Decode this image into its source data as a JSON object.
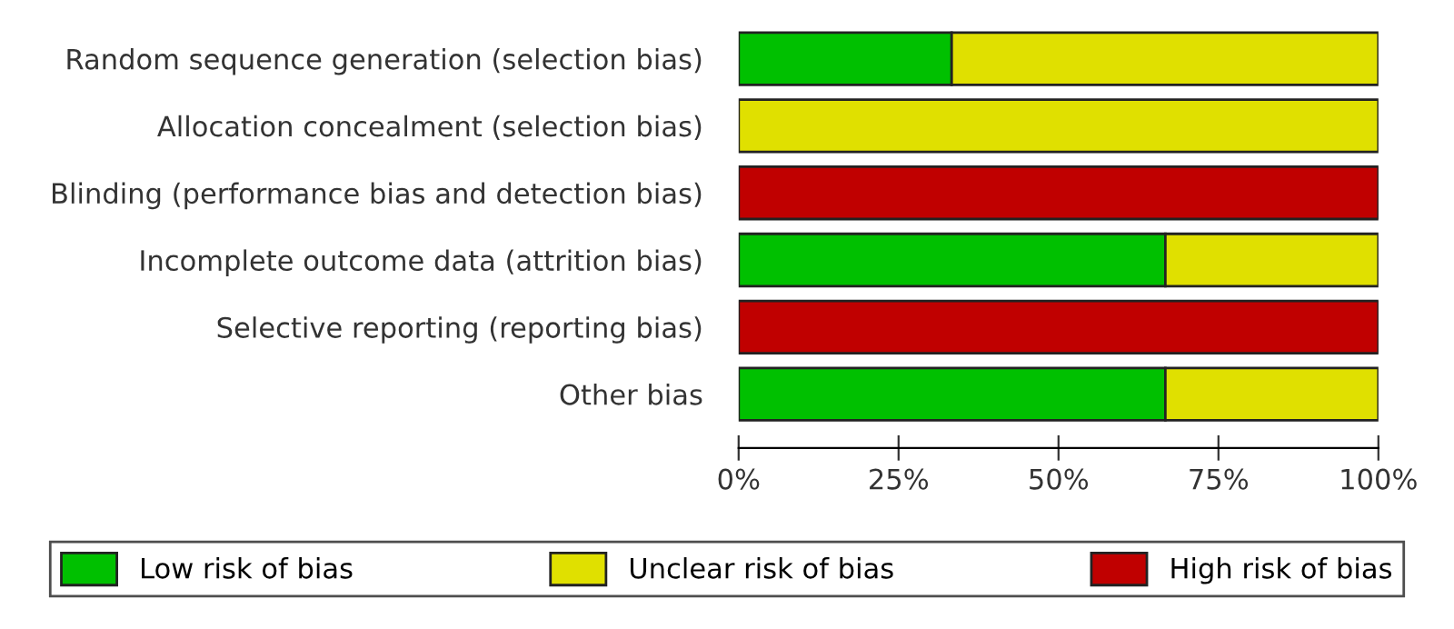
{
  "chart_data": {
    "type": "bar",
    "orientation": "horizontal",
    "stacked": true,
    "categories": [
      "Random sequence generation (selection bias)",
      "Allocation concealment (selection bias)",
      "Blinding (performance bias and detection bias)",
      "Incomplete outcome data (attrition bias)",
      "Selective reporting (reporting bias)",
      "Other bias"
    ],
    "series": [
      {
        "name": "Low risk of bias",
        "color": "#00c000",
        "values": [
          33.3,
          0,
          0,
          66.7,
          0,
          66.7
        ]
      },
      {
        "name": "Unclear risk of bias",
        "color": "#e0e000",
        "values": [
          66.7,
          100,
          0,
          33.3,
          0,
          33.3
        ]
      },
      {
        "name": "High risk of bias",
        "color": "#c00000",
        "values": [
          0,
          0,
          100,
          0,
          100,
          0
        ]
      }
    ],
    "xlim": [
      0,
      100
    ],
    "xticks": [
      {
        "value": 0,
        "label": "0%"
      },
      {
        "value": 25,
        "label": "25%"
      },
      {
        "value": 50,
        "label": "50%"
      },
      {
        "value": 75,
        "label": "75%"
      },
      {
        "value": 100,
        "label": "100%"
      }
    ],
    "grid": false,
    "legend": "bottom"
  }
}
